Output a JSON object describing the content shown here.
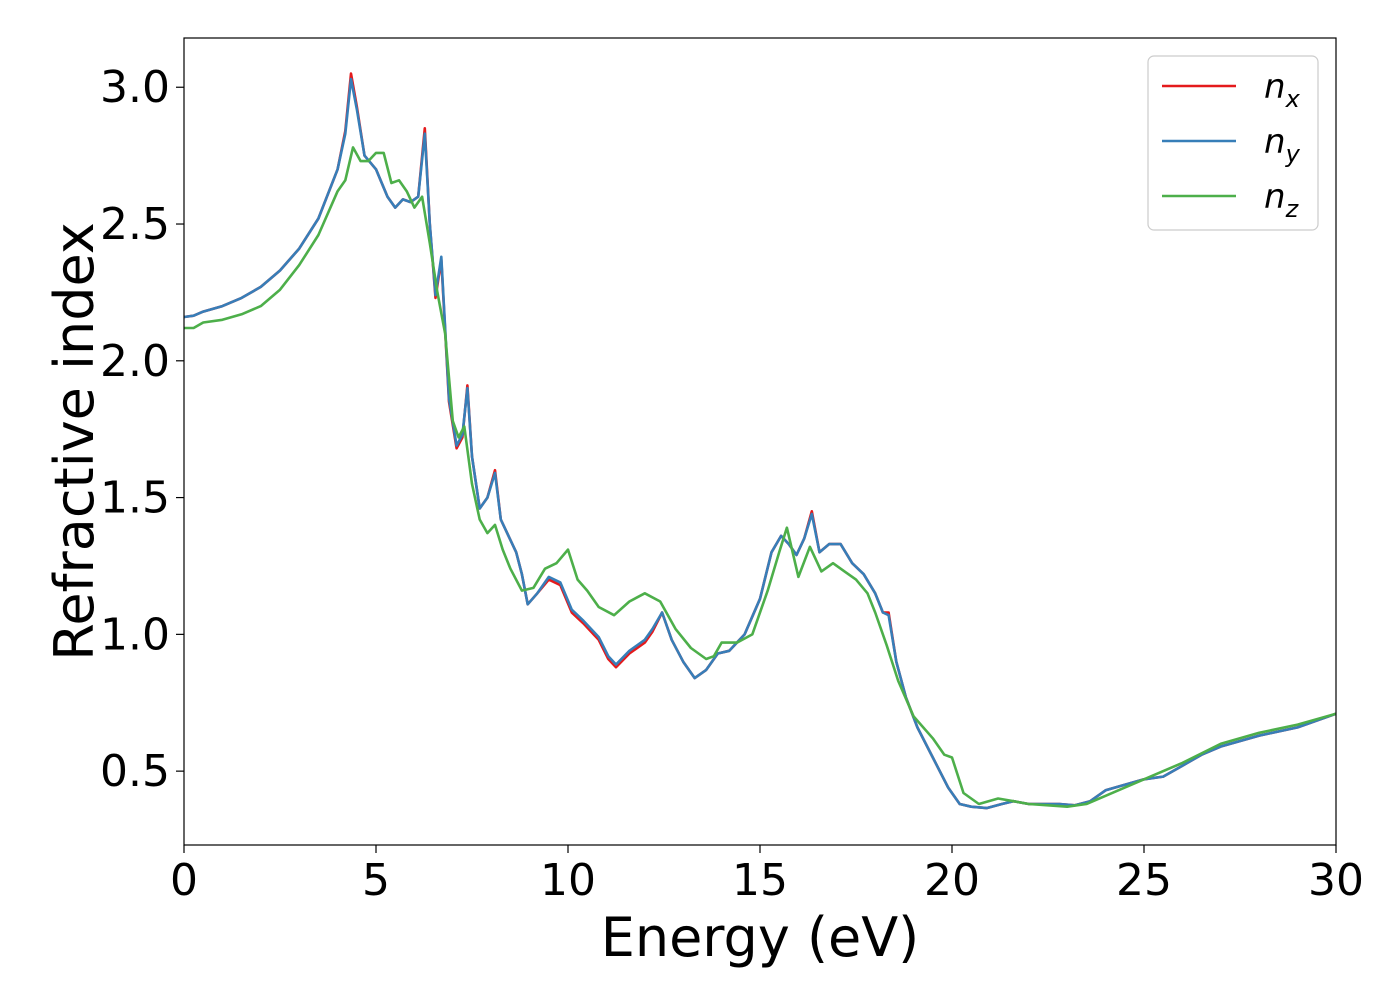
{
  "chart_data": {
    "type": "line",
    "title": "",
    "xlabel": "Energy (eV)",
    "ylabel": "Refractive index",
    "xlim": [
      0,
      30
    ],
    "ylim": [
      0.23,
      3.18
    ],
    "xticks": [
      0,
      5,
      10,
      15,
      20,
      25,
      30
    ],
    "xtick_labels": [
      "0",
      "5",
      "10",
      "15",
      "20",
      "25",
      "30"
    ],
    "yticks": [
      0.5,
      1.0,
      1.5,
      2.0,
      2.5,
      3.0
    ],
    "ytick_labels": [
      "0.5",
      "1.0",
      "1.5",
      "2.0",
      "2.5",
      "3.0"
    ],
    "grid": false,
    "legend_position": "top-right",
    "series": [
      {
        "name": "n_x",
        "legend_main": "n",
        "legend_sub": "x",
        "color": "#e41a1c",
        "x": [
          0,
          0.25,
          0.5,
          1,
          1.5,
          2,
          2.5,
          3,
          3.5,
          4,
          4.2,
          4.35,
          4.5,
          4.7,
          5,
          5.3,
          5.5,
          5.7,
          5.9,
          6.1,
          6.27,
          6.4,
          6.55,
          6.7,
          6.9,
          7.1,
          7.25,
          7.38,
          7.5,
          7.7,
          7.9,
          8.1,
          8.25,
          8.45,
          8.65,
          8.8,
          8.95,
          9.2,
          9.5,
          9.8,
          10.1,
          10.4,
          10.8,
          11.05,
          11.25,
          11.6,
          12,
          12.2,
          12.45,
          12.7,
          13,
          13.3,
          13.6,
          13.9,
          14.2,
          14.6,
          15,
          15.3,
          15.55,
          15.75,
          15.95,
          16.15,
          16.35,
          16.55,
          16.8,
          17.1,
          17.4,
          17.7,
          18,
          18.2,
          18.35,
          18.55,
          18.8,
          19.1,
          19.5,
          19.9,
          20.2,
          20.5,
          20.9,
          21.3,
          21.6,
          22,
          22.4,
          22.8,
          23.2,
          23.6,
          24,
          24.5,
          25,
          25.5,
          26,
          26.5,
          27,
          28,
          29,
          30
        ],
        "y": [
          2.16,
          2.165,
          2.18,
          2.2,
          2.23,
          2.27,
          2.33,
          2.41,
          2.52,
          2.7,
          2.84,
          3.05,
          2.93,
          2.75,
          2.7,
          2.6,
          2.56,
          2.59,
          2.58,
          2.6,
          2.85,
          2.5,
          2.23,
          2.37,
          1.85,
          1.68,
          1.72,
          1.91,
          1.65,
          1.46,
          1.5,
          1.6,
          1.42,
          1.36,
          1.3,
          1.22,
          1.11,
          1.15,
          1.2,
          1.18,
          1.08,
          1.04,
          0.98,
          0.91,
          0.88,
          0.93,
          0.97,
          1.01,
          1.08,
          0.98,
          0.9,
          0.84,
          0.87,
          0.93,
          0.94,
          1,
          1.13,
          1.3,
          1.36,
          1.33,
          1.29,
          1.35,
          1.45,
          1.3,
          1.33,
          1.33,
          1.26,
          1.22,
          1.15,
          1.08,
          1.08,
          0.9,
          0.77,
          0.66,
          0.55,
          0.44,
          0.38,
          0.37,
          0.365,
          0.38,
          0.39,
          0.38,
          0.38,
          0.38,
          0.375,
          0.39,
          0.43,
          0.45,
          0.47,
          0.48,
          0.52,
          0.56,
          0.59,
          0.63,
          0.66,
          0.71
        ]
      },
      {
        "name": "n_y",
        "legend_main": "n",
        "legend_sub": "y",
        "color": "#377eb8",
        "x": [
          0,
          0.25,
          0.5,
          1,
          1.5,
          2,
          2.5,
          3,
          3.5,
          4,
          4.2,
          4.35,
          4.5,
          4.7,
          5,
          5.3,
          5.5,
          5.7,
          5.9,
          6.1,
          6.27,
          6.4,
          6.55,
          6.7,
          6.9,
          7.1,
          7.25,
          7.38,
          7.5,
          7.7,
          7.9,
          8.1,
          8.25,
          8.45,
          8.65,
          8.8,
          8.95,
          9.2,
          9.5,
          9.8,
          10.1,
          10.4,
          10.8,
          11.05,
          11.25,
          11.6,
          12,
          12.2,
          12.45,
          12.7,
          13,
          13.3,
          13.6,
          13.9,
          14.2,
          14.6,
          15,
          15.3,
          15.55,
          15.75,
          15.95,
          16.15,
          16.35,
          16.55,
          16.8,
          17.1,
          17.4,
          17.7,
          18,
          18.2,
          18.35,
          18.55,
          18.8,
          19.1,
          19.5,
          19.9,
          20.2,
          20.5,
          20.9,
          21.3,
          21.6,
          22,
          22.4,
          22.8,
          23.2,
          23.6,
          24,
          24.5,
          25,
          25.5,
          26,
          26.5,
          27,
          28,
          29,
          30
        ],
        "y": [
          2.16,
          2.165,
          2.18,
          2.2,
          2.23,
          2.27,
          2.33,
          2.41,
          2.52,
          2.7,
          2.83,
          3.03,
          2.92,
          2.75,
          2.7,
          2.6,
          2.56,
          2.59,
          2.58,
          2.6,
          2.83,
          2.5,
          2.24,
          2.38,
          1.86,
          1.69,
          1.73,
          1.9,
          1.65,
          1.46,
          1.5,
          1.59,
          1.42,
          1.36,
          1.3,
          1.22,
          1.11,
          1.15,
          1.21,
          1.19,
          1.09,
          1.05,
          0.99,
          0.92,
          0.89,
          0.94,
          0.98,
          1.02,
          1.08,
          0.98,
          0.9,
          0.84,
          0.87,
          0.93,
          0.94,
          1,
          1.13,
          1.3,
          1.36,
          1.33,
          1.29,
          1.35,
          1.44,
          1.3,
          1.33,
          1.33,
          1.26,
          1.22,
          1.15,
          1.08,
          1.07,
          0.9,
          0.77,
          0.66,
          0.55,
          0.44,
          0.38,
          0.37,
          0.365,
          0.38,
          0.39,
          0.38,
          0.38,
          0.38,
          0.375,
          0.39,
          0.43,
          0.45,
          0.47,
          0.48,
          0.52,
          0.56,
          0.59,
          0.63,
          0.66,
          0.71
        ]
      },
      {
        "name": "n_z",
        "legend_main": "n",
        "legend_sub": "z",
        "color": "#4daf4a",
        "x": [
          0,
          0.25,
          0.5,
          1,
          1.5,
          2,
          2.5,
          3,
          3.5,
          4,
          4.2,
          4.4,
          4.6,
          4.8,
          5,
          5.2,
          5.4,
          5.6,
          5.8,
          6,
          6.2,
          6.4,
          6.6,
          6.8,
          7,
          7.15,
          7.3,
          7.5,
          7.7,
          7.9,
          8.1,
          8.3,
          8.5,
          8.8,
          9.1,
          9.4,
          9.7,
          10,
          10.25,
          10.5,
          10.8,
          11.2,
          11.6,
          12,
          12.4,
          12.8,
          13.2,
          13.6,
          13.8,
          14,
          14.4,
          14.8,
          15.2,
          15.5,
          15.7,
          16,
          16.3,
          16.6,
          16.9,
          17.2,
          17.5,
          17.8,
          18,
          18.3,
          18.6,
          19,
          19.5,
          19.8,
          20,
          20.3,
          20.7,
          21.2,
          21.6,
          22,
          22.5,
          23,
          23.5,
          24,
          24.5,
          25,
          26,
          27,
          28,
          29,
          30
        ],
        "y": [
          2.12,
          2.12,
          2.14,
          2.15,
          2.17,
          2.2,
          2.26,
          2.35,
          2.46,
          2.62,
          2.66,
          2.78,
          2.73,
          2.73,
          2.76,
          2.76,
          2.65,
          2.66,
          2.62,
          2.56,
          2.6,
          2.43,
          2.25,
          2.1,
          1.78,
          1.72,
          1.76,
          1.55,
          1.42,
          1.37,
          1.4,
          1.31,
          1.24,
          1.16,
          1.17,
          1.24,
          1.26,
          1.31,
          1.2,
          1.16,
          1.1,
          1.07,
          1.12,
          1.15,
          1.12,
          1.02,
          0.95,
          0.91,
          0.92,
          0.97,
          0.97,
          1,
          1.16,
          1.3,
          1.39,
          1.21,
          1.32,
          1.23,
          1.26,
          1.23,
          1.2,
          1.15,
          1.08,
          0.96,
          0.83,
          0.7,
          0.62,
          0.56,
          0.55,
          0.42,
          0.38,
          0.4,
          0.39,
          0.38,
          0.375,
          0.37,
          0.38,
          0.41,
          0.44,
          0.47,
          0.53,
          0.6,
          0.64,
          0.67,
          0.71
        ]
      }
    ]
  }
}
